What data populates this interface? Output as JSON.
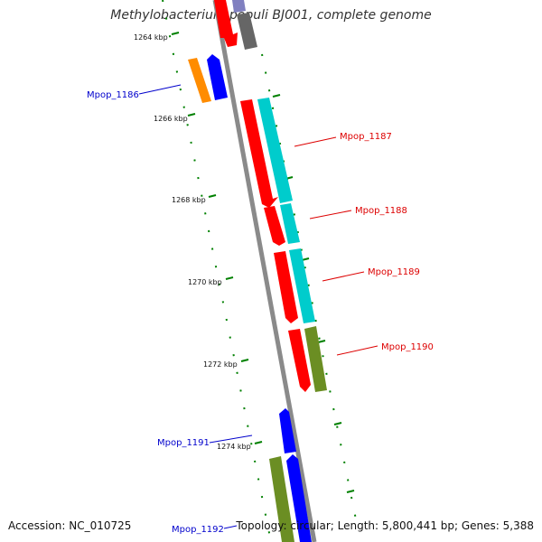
{
  "title": "Methylobacterium populi BJ001, complete genome",
  "accession": "Accession: NC_010725",
  "summary": "Topology: circular; Length: 5,800,441 bp; Genes: 5,388",
  "scale_labels": [
    "1264 kbp",
    "1266 kbp",
    "1268 kbp",
    "1270 kbp",
    "1272 kbp",
    "1274 kbp"
  ],
  "gene_labels": [
    "Mpop_1186",
    "Mpop_1187",
    "Mpop_1188",
    "Mpop_1189",
    "Mpop_1190",
    "Mpop_1191",
    "Mpop_1192"
  ],
  "colors": {
    "backbone": "#888888",
    "ticks": "#008000",
    "cds": "#ff0000",
    "cyan": "#00cccc",
    "olive": "#6b8e23",
    "blue": "#0000ff",
    "orange": "#ff8c00",
    "gray": "#666666",
    "label_blue": "#0000cc",
    "label_red": "#dd0000"
  }
}
